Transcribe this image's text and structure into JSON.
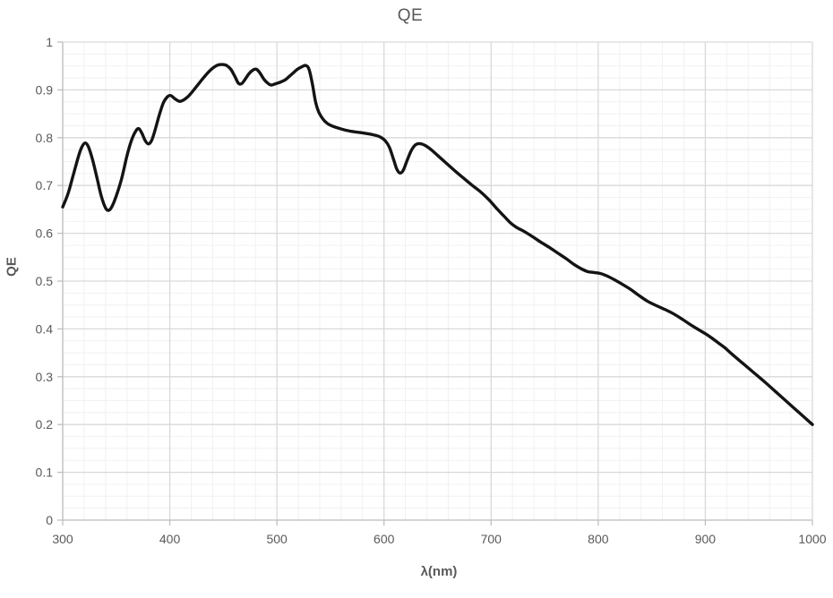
{
  "page": {
    "background": "#ffffff"
  },
  "chart_data": {
    "type": "line",
    "title": "QE",
    "xlabel": "λ(nm)",
    "ylabel": "QE",
    "xlim": [
      300,
      1000
    ],
    "ylim": [
      0,
      1
    ],
    "x_major_step": 100,
    "x_minor_step": 20,
    "y_major_step": 0.1,
    "y_minor_step": 0.025,
    "x_tick_labels": [
      "300",
      "400",
      "500",
      "600",
      "700",
      "800",
      "900",
      "1000"
    ],
    "y_tick_labels": [
      "0",
      "0.1",
      "0.2",
      "0.3",
      "0.4",
      "0.5",
      "0.6",
      "0.7",
      "0.8",
      "0.9",
      "1"
    ],
    "grid": true,
    "legend": "none",
    "colors": {
      "line": "#141414",
      "major_grid": "#d9d9d9",
      "minor_grid": "#f1f1f1",
      "axis": "#bfbfbf",
      "text": "#595959"
    },
    "series": [
      {
        "name": "QE",
        "points": [
          [
            300,
            0.655
          ],
          [
            305,
            0.683
          ],
          [
            310,
            0.723
          ],
          [
            315,
            0.763
          ],
          [
            318,
            0.781
          ],
          [
            321,
            0.789
          ],
          [
            324,
            0.781
          ],
          [
            328,
            0.753
          ],
          [
            332,
            0.716
          ],
          [
            336,
            0.678
          ],
          [
            340,
            0.653
          ],
          [
            343,
            0.648
          ],
          [
            346,
            0.656
          ],
          [
            350,
            0.678
          ],
          [
            355,
            0.714
          ],
          [
            360,
            0.762
          ],
          [
            364,
            0.793
          ],
          [
            368,
            0.813
          ],
          [
            371,
            0.819
          ],
          [
            374,
            0.809
          ],
          [
            377,
            0.794
          ],
          [
            380,
            0.787
          ],
          [
            383,
            0.794
          ],
          [
            386,
            0.814
          ],
          [
            390,
            0.846
          ],
          [
            394,
            0.873
          ],
          [
            398,
            0.886
          ],
          [
            401,
            0.888
          ],
          [
            405,
            0.881
          ],
          [
            409,
            0.876
          ],
          [
            413,
            0.879
          ],
          [
            417,
            0.886
          ],
          [
            421,
            0.896
          ],
          [
            426,
            0.91
          ],
          [
            431,
            0.924
          ],
          [
            436,
            0.937
          ],
          [
            441,
            0.947
          ],
          [
            445,
            0.952
          ],
          [
            449,
            0.953
          ],
          [
            453,
            0.951
          ],
          [
            457,
            0.943
          ],
          [
            461,
            0.927
          ],
          [
            464,
            0.914
          ],
          [
            467,
            0.913
          ],
          [
            470,
            0.921
          ],
          [
            474,
            0.934
          ],
          [
            478,
            0.942
          ],
          [
            481,
            0.943
          ],
          [
            484,
            0.936
          ],
          [
            488,
            0.922
          ],
          [
            492,
            0.913
          ],
          [
            495,
            0.91
          ],
          [
            499,
            0.913
          ],
          [
            503,
            0.916
          ],
          [
            507,
            0.92
          ],
          [
            511,
            0.927
          ],
          [
            515,
            0.935
          ],
          [
            519,
            0.943
          ],
          [
            523,
            0.948
          ],
          [
            527,
            0.951
          ],
          [
            530,
            0.943
          ],
          [
            533,
            0.914
          ],
          [
            536,
            0.876
          ],
          [
            539,
            0.854
          ],
          [
            543,
            0.839
          ],
          [
            547,
            0.83
          ],
          [
            551,
            0.825
          ],
          [
            556,
            0.821
          ],
          [
            562,
            0.817
          ],
          [
            570,
            0.813
          ],
          [
            580,
            0.81
          ],
          [
            590,
            0.806
          ],
          [
            596,
            0.802
          ],
          [
            601,
            0.794
          ],
          [
            605,
            0.78
          ],
          [
            609,
            0.754
          ],
          [
            612,
            0.734
          ],
          [
            615,
            0.726
          ],
          [
            618,
            0.732
          ],
          [
            621,
            0.749
          ],
          [
            625,
            0.771
          ],
          [
            628,
            0.782
          ],
          [
            631,
            0.787
          ],
          [
            635,
            0.787
          ],
          [
            639,
            0.783
          ],
          [
            644,
            0.775
          ],
          [
            650,
            0.763
          ],
          [
            658,
            0.747
          ],
          [
            666,
            0.731
          ],
          [
            674,
            0.716
          ],
          [
            682,
            0.701
          ],
          [
            690,
            0.687
          ],
          [
            698,
            0.67
          ],
          [
            706,
            0.65
          ],
          [
            712,
            0.636
          ],
          [
            718,
            0.622
          ],
          [
            724,
            0.612
          ],
          [
            730,
            0.605
          ],
          [
            738,
            0.594
          ],
          [
            746,
            0.582
          ],
          [
            754,
            0.571
          ],
          [
            762,
            0.559
          ],
          [
            770,
            0.547
          ],
          [
            778,
            0.534
          ],
          [
            784,
            0.526
          ],
          [
            790,
            0.52
          ],
          [
            796,
            0.518
          ],
          [
            802,
            0.516
          ],
          [
            808,
            0.511
          ],
          [
            815,
            0.503
          ],
          [
            822,
            0.494
          ],
          [
            830,
            0.483
          ],
          [
            838,
            0.47
          ],
          [
            846,
            0.458
          ],
          [
            854,
            0.449
          ],
          [
            862,
            0.441
          ],
          [
            870,
            0.432
          ],
          [
            878,
            0.421
          ],
          [
            886,
            0.409
          ],
          [
            894,
            0.398
          ],
          [
            900,
            0.39
          ],
          [
            906,
            0.381
          ],
          [
            912,
            0.371
          ],
          [
            918,
            0.361
          ],
          [
            925,
            0.347
          ],
          [
            935,
            0.328
          ],
          [
            945,
            0.309
          ],
          [
            955,
            0.29
          ],
          [
            965,
            0.27
          ],
          [
            975,
            0.25
          ],
          [
            985,
            0.23
          ],
          [
            1000,
            0.2
          ]
        ]
      }
    ]
  }
}
